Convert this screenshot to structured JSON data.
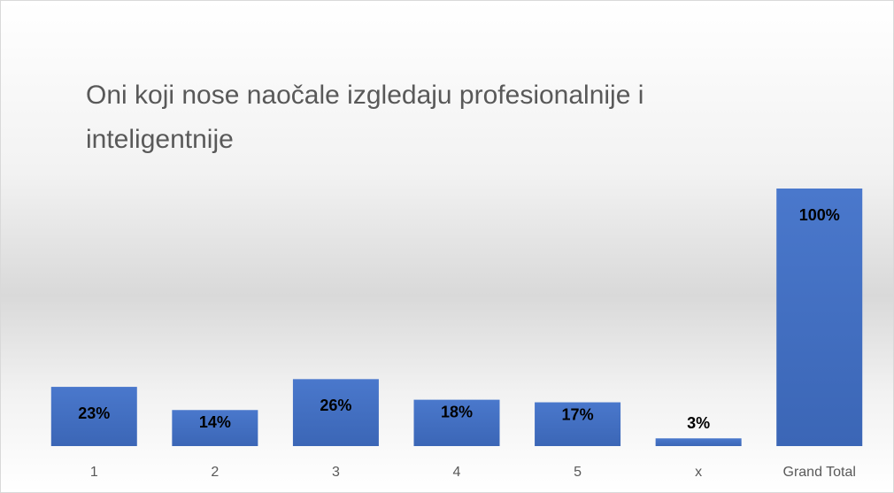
{
  "chart_data": {
    "type": "bar",
    "title": "Oni koji nose naočale izgledaju profesionalnije i inteligentnije",
    "categories": [
      "1",
      "2",
      "3",
      "4",
      "5",
      "x",
      "Grand Total"
    ],
    "values": [
      23,
      14,
      26,
      18,
      17,
      3,
      100
    ],
    "value_labels": [
      "23%",
      "14%",
      "26%",
      "18%",
      "17%",
      "3%",
      "100%"
    ],
    "color": "#4472c4",
    "ylim": [
      0,
      100
    ]
  }
}
